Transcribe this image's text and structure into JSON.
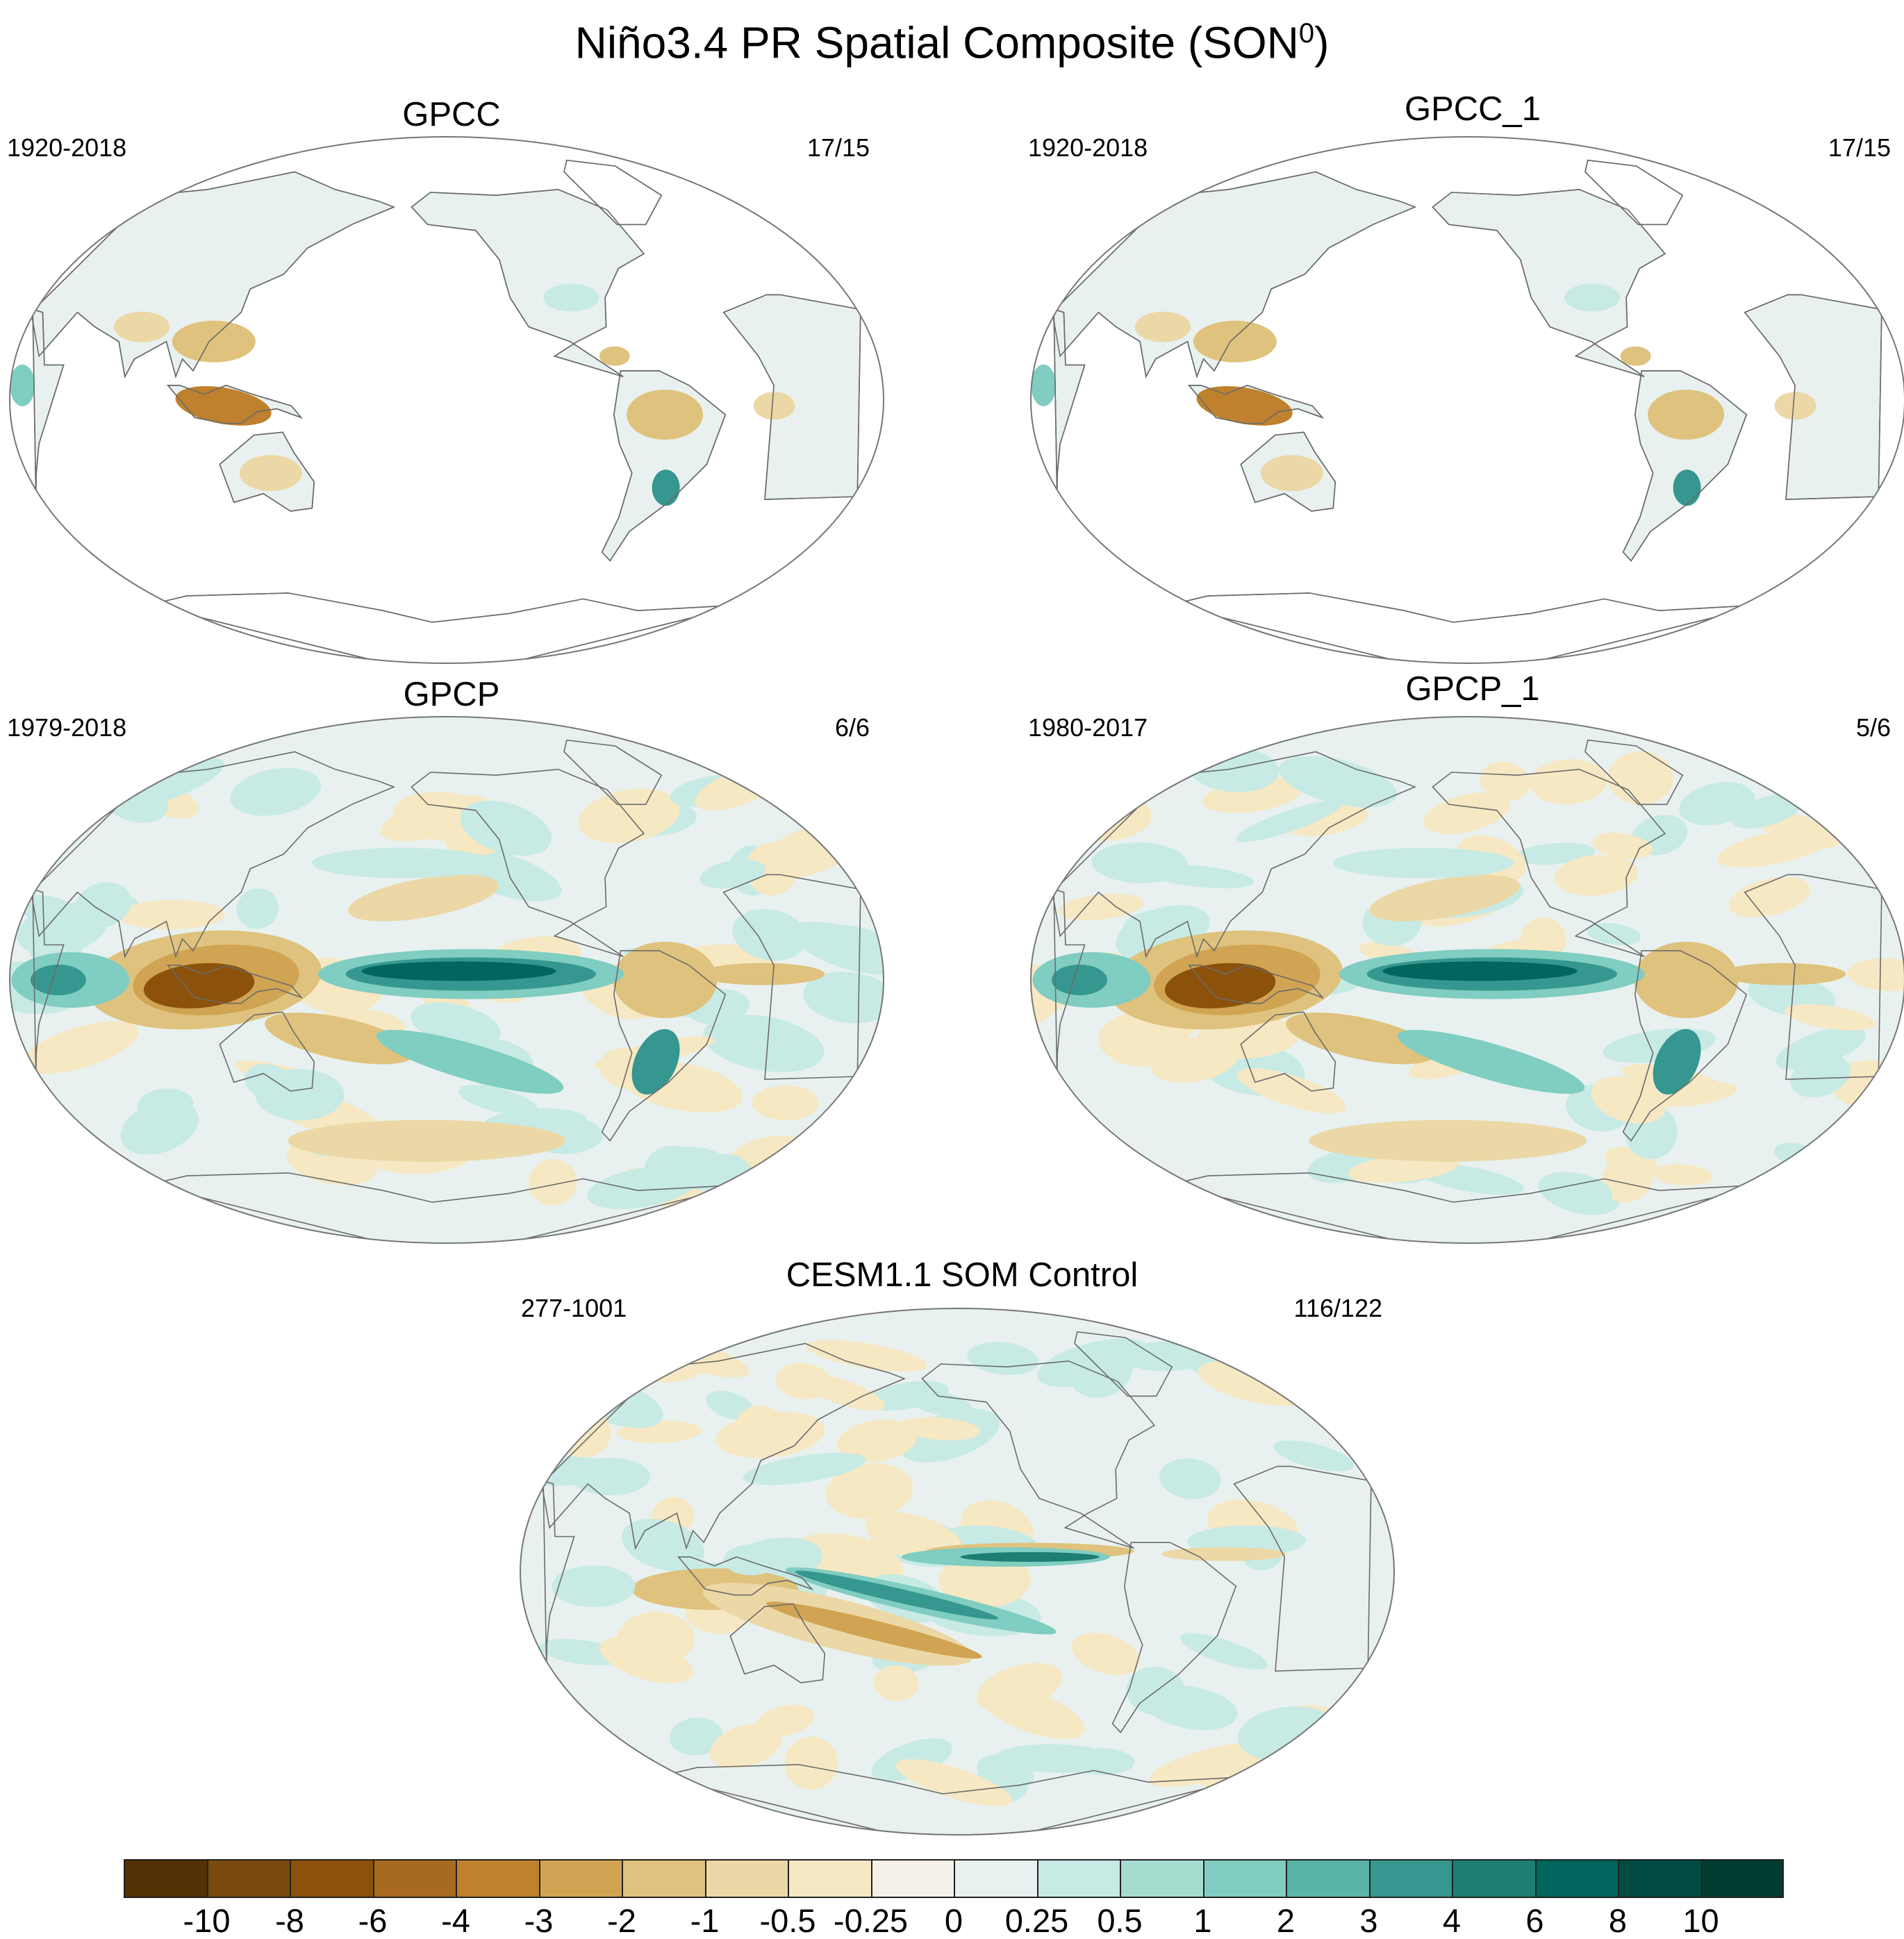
{
  "title": "Niño3.4 PR Spatial Composite (SON",
  "title_superscript": "0",
  "title_suffix": ")",
  "panels": [
    {
      "key": "gpcc",
      "title": "GPCC",
      "period": "1920-2018",
      "count": "17/15",
      "coverage": "land"
    },
    {
      "key": "gpcc1",
      "title": "GPCC_1",
      "period": "1920-2018",
      "count": "17/15",
      "coverage": "land"
    },
    {
      "key": "gpcp",
      "title": "GPCP",
      "period": "1979-2018",
      "count": "6/6",
      "coverage": "global"
    },
    {
      "key": "gpcp1",
      "title": "GPCP_1",
      "period": "1980-2017",
      "count": "5/6",
      "coverage": "global"
    },
    {
      "key": "cesm",
      "title": "CESM1.1 SOM Control",
      "period": "277-1001",
      "count": "116/122",
      "coverage": "global"
    }
  ],
  "colorbar": {
    "labels": [
      "-10",
      "-8",
      "-6",
      "-4",
      "-3",
      "-2",
      "-1",
      "-0.5",
      "-0.25",
      "0",
      "0.25",
      "0.5",
      "1",
      "2",
      "3",
      "4",
      "6",
      "8",
      "10"
    ],
    "colors": [
      "#543005",
      "#7a4a0f",
      "#8c510a",
      "#a86a1e",
      "#bf812d",
      "#d0a452",
      "#dfc27d",
      "#ecd8a6",
      "#f6e8c3",
      "#f5f1e8",
      "#e8f1ef",
      "#c7eae5",
      "#a6dbd0",
      "#80cdc1",
      "#5ab4a8",
      "#35978f",
      "#1f7e74",
      "#01665e",
      "#014a42",
      "#003c30"
    ]
  },
  "colors": {
    "ocean_none": "#ffffff",
    "coastline": "#6b6b6b",
    "border": "#777777"
  }
}
